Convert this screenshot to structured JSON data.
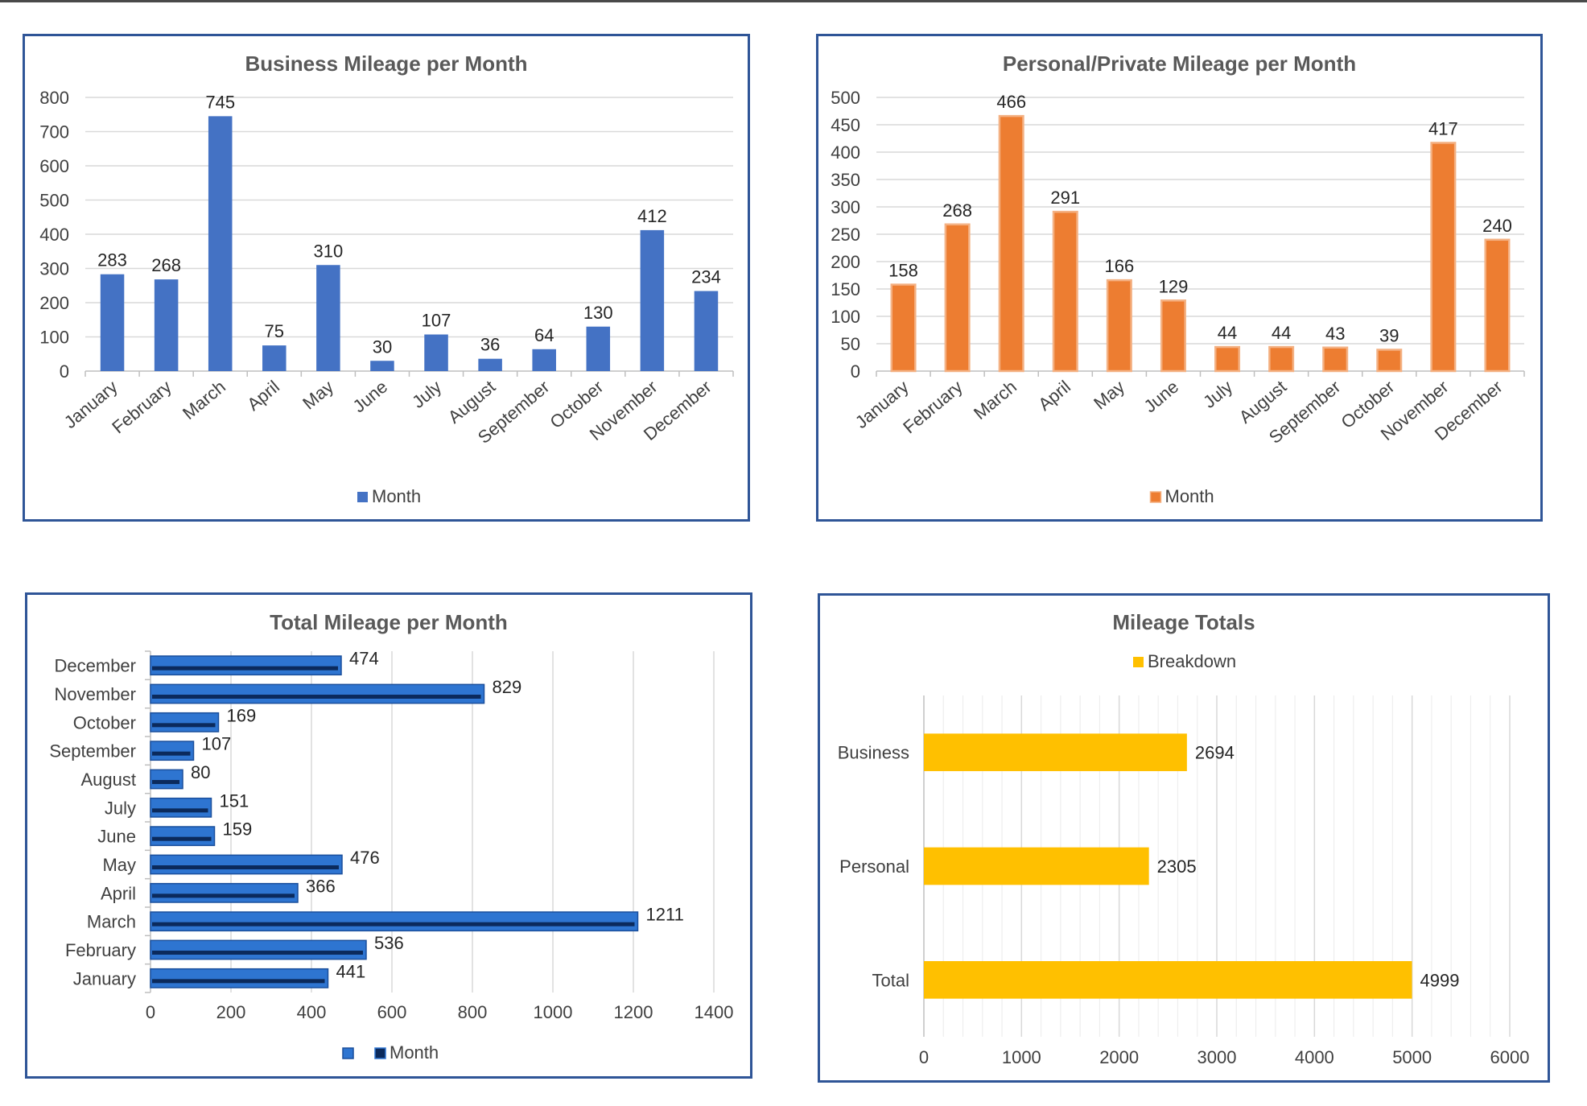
{
  "chart_data": [
    {
      "id": "business",
      "type": "bar",
      "title": "Business Mileage per Month",
      "categories": [
        "January",
        "February",
        "March",
        "April",
        "May",
        "June",
        "July",
        "August",
        "September",
        "October",
        "November",
        "December"
      ],
      "series": [
        {
          "name": "Month",
          "values": [
            283,
            268,
            745,
            75,
            310,
            30,
            107,
            36,
            64,
            130,
            412,
            234
          ]
        }
      ],
      "ylim": [
        0,
        800
      ],
      "yticks": [
        0,
        100,
        200,
        300,
        400,
        500,
        600,
        700,
        800
      ],
      "color": "#4472c4",
      "grid": true,
      "legend": "bottom"
    },
    {
      "id": "personal",
      "type": "bar",
      "title": "Personal/Private Mileage per Month",
      "categories": [
        "January",
        "February",
        "March",
        "April",
        "May",
        "June",
        "July",
        "August",
        "September",
        "October",
        "November",
        "December"
      ],
      "series": [
        {
          "name": "Month",
          "values": [
            158,
            268,
            466,
            291,
            166,
            129,
            44,
            44,
            43,
            39,
            417,
            240
          ]
        }
      ],
      "ylim": [
        0,
        500
      ],
      "yticks": [
        0,
        50,
        100,
        150,
        200,
        250,
        300,
        350,
        400,
        450,
        500
      ],
      "color": "#ed7d31",
      "edge_color": "#f4b183",
      "grid": true,
      "legend": "bottom"
    },
    {
      "id": "total",
      "type": "bar",
      "orientation": "horizontal",
      "title": "Total Mileage per Month",
      "categories": [
        "January",
        "February",
        "March",
        "April",
        "May",
        "June",
        "July",
        "August",
        "September",
        "October",
        "November",
        "December"
      ],
      "series": [
        {
          "name": "Month",
          "values": [
            441,
            536,
            1211,
            366,
            476,
            159,
            151,
            80,
            107,
            169,
            829,
            474
          ]
        }
      ],
      "xlim": [
        0,
        1400
      ],
      "xticks": [
        0,
        200,
        400,
        600,
        800,
        1000,
        1200,
        1400
      ],
      "color": "#2e75d1",
      "inner_color": "#0b2a5c",
      "grid": true,
      "legend": "bottom"
    },
    {
      "id": "totals",
      "type": "bar",
      "orientation": "horizontal",
      "title": "Mileage Totals",
      "categories": [
        "Business",
        "Personal",
        "Total"
      ],
      "series": [
        {
          "name": "Breakdown",
          "values": [
            2694,
            2305,
            4999
          ]
        }
      ],
      "xlim": [
        0,
        6000
      ],
      "xticks": [
        0,
        1000,
        2000,
        3000,
        4000,
        5000,
        6000
      ],
      "color": "#ffc000",
      "grid": true,
      "legend": "top"
    }
  ]
}
